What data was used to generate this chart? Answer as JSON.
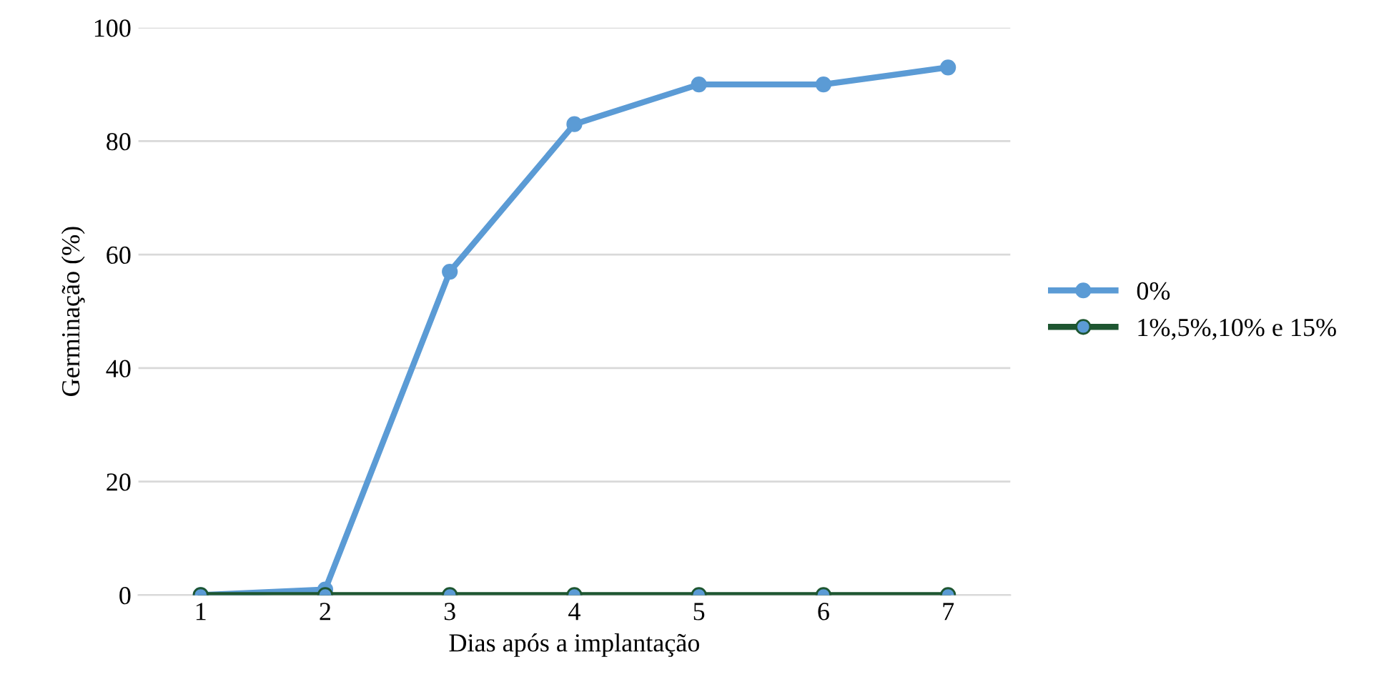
{
  "chart_data": {
    "type": "line",
    "xlabel": "Dias após a implantação",
    "ylabel": "Germinação (%)",
    "categories": [
      "1",
      "2",
      "3",
      "4",
      "5",
      "6",
      "7"
    ],
    "series": [
      {
        "name": "0%",
        "color": "#5b9bd5",
        "values": [
          0,
          1,
          57,
          83,
          90,
          90,
          93
        ]
      },
      {
        "name": "1%,5%,10% e 15%",
        "color": "#1e5631",
        "values": [
          0,
          0,
          0,
          0,
          0,
          0,
          0
        ]
      }
    ],
    "ylim": [
      0,
      100
    ],
    "yticks": [
      0,
      20,
      40,
      60,
      80,
      100
    ],
    "grid": "y",
    "legend": "right",
    "marker": "circle",
    "line_style": "solid"
  }
}
